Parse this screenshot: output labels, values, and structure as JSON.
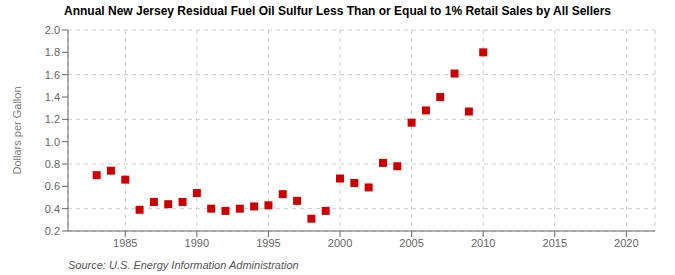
{
  "chart_data": {
    "type": "scatter",
    "title": "Annual New Jersey Residual Fuel Oil Sulfur Less Than or Equal to 1% Retail Sales by All Sellers",
    "ylabel": "Dollars per Gallon",
    "annotations": [
      "Source: U.S. Energy Information Administration"
    ],
    "x": [
      1983,
      1984,
      1985,
      1986,
      1987,
      1988,
      1989,
      1990,
      1991,
      1992,
      1993,
      1994,
      1995,
      1996,
      1997,
      1998,
      1999,
      2000,
      2001,
      2002,
      2003,
      2004,
      2005,
      2006,
      2007,
      2008,
      2009,
      2010
    ],
    "values": [
      0.7,
      0.74,
      0.66,
      0.39,
      0.46,
      0.44,
      0.46,
      0.54,
      0.4,
      0.38,
      0.4,
      0.42,
      0.43,
      0.53,
      0.47,
      0.31,
      0.38,
      0.67,
      0.63,
      0.59,
      0.81,
      0.78,
      1.17,
      1.28,
      1.4,
      1.61,
      1.27,
      1.8
    ],
    "color": "#cc0000",
    "marker": "square",
    "xlim": [
      1981,
      2022
    ],
    "xticks": [
      1985,
      1990,
      1995,
      2000,
      2005,
      2010,
      2015,
      2020
    ],
    "ylim": [
      0.2,
      2.0
    ],
    "yticks": [
      0.2,
      0.4,
      0.6,
      0.8,
      {
        "value": 1,
        "label": "1.0"
      },
      1.2,
      1.4,
      1.6,
      1.8,
      {
        "value": 2,
        "label": "2.0"
      }
    ],
    "grid": true
  }
}
